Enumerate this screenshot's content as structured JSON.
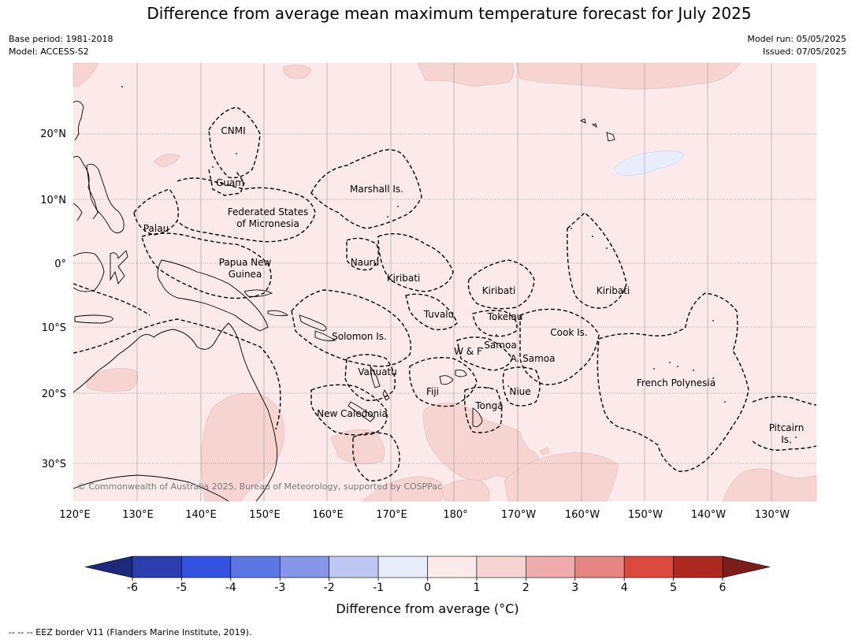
{
  "title": "Difference from average mean maximum temperature forecast for July 2025",
  "meta_left": [
    "Base period: 1981-2018",
    "Model: ACCESS-S2"
  ],
  "meta_right": [
    "Model run: 05/05/2025",
    "Issued: 07/05/2025"
  ],
  "copyright": "© Commonwealth of Australia 2025, Bureau of Meteorology, supported by COSPPac",
  "lon_labels": [
    "120°E",
    "130°E",
    "140°E",
    "150°E",
    "160°E",
    "170°E",
    "180°",
    "170°W",
    "160°W",
    "150°W",
    "140°W",
    "130°W"
  ],
  "lat_labels": [
    "20°N",
    "10°N",
    "0°",
    "10°S",
    "20°S",
    "30°S"
  ],
  "places": [
    {
      "name": "CNMI"
    },
    {
      "name": "Guam"
    },
    {
      "name": "Marshall Is."
    },
    {
      "name": "Federated States"
    },
    {
      "name": "of Micronesia"
    },
    {
      "name": "Palau"
    },
    {
      "name": "Papua New"
    },
    {
      "name": "Guinea"
    },
    {
      "name": "Nauru"
    },
    {
      "name": "Kiribati"
    },
    {
      "name": "Kiribati"
    },
    {
      "name": "Kiribati"
    },
    {
      "name": "Tuvalu"
    },
    {
      "name": "Tokelau"
    },
    {
      "name": "Cook Is."
    },
    {
      "name": "Solomon Is."
    },
    {
      "name": "W & F"
    },
    {
      "name": "Samoa"
    },
    {
      "name": "A. Samoa"
    },
    {
      "name": "Vanuatu"
    },
    {
      "name": "Fiji"
    },
    {
      "name": "Niue"
    },
    {
      "name": "Tonga"
    },
    {
      "name": "French Polynesia"
    },
    {
      "name": "New Caledonia"
    },
    {
      "name": "Pitcairn"
    },
    {
      "name": "Is."
    }
  ],
  "colorbar": {
    "ticks": [
      "-6",
      "-5",
      "-4",
      "-3",
      "-2",
      "-1",
      "0",
      "1",
      "2",
      "3",
      "4",
      "5",
      "6"
    ],
    "colors": [
      "#2a3fad",
      "#3352e0",
      "#5c76e4",
      "#8696ea",
      "#bfc8f3",
      "#e8edfb",
      "#fbeae9",
      "#f5d4d2",
      "#efacaa",
      "#e68582",
      "#db4a3f",
      "#ad2a22"
    ],
    "under_color": "#1d2a7a",
    "over_color": "#7b1d18",
    "label": "Difference from average (°C)"
  },
  "footnote": "--  --  -- EEZ border V11 (Flanders Marine Institute, 2019)."
}
